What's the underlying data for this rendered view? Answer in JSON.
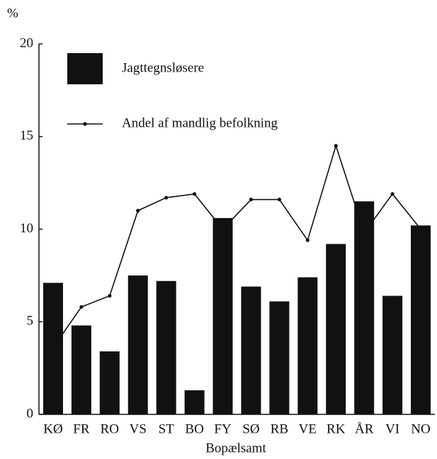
{
  "chart_data": {
    "type": "bar_line",
    "ylabel": "%",
    "xlabel": "Bopælsamt",
    "categories": [
      "KØ",
      "FR",
      "RO",
      "VS",
      "ST",
      "BO",
      "FY",
      "SØ",
      "RB",
      "VE",
      "RK",
      "ÅR",
      "VI",
      "NO"
    ],
    "series": [
      {
        "name": "Jagttegnsløsere",
        "type": "bar",
        "color": "#111111",
        "values": [
          7.1,
          4.8,
          3.4,
          7.5,
          7.2,
          1.3,
          10.6,
          6.9,
          6.1,
          7.4,
          9.2,
          11.5,
          6.4,
          10.2
        ]
      },
      {
        "name": "Andel af mandlig befolkning",
        "type": "line",
        "color": "#111111",
        "values": [
          3.6,
          5.8,
          6.4,
          11.0,
          11.7,
          11.9,
          10.0,
          11.6,
          11.6,
          9.4,
          14.5,
          9.8,
          11.9,
          10.0
        ]
      }
    ],
    "ylim": [
      0,
      20
    ],
    "yticks": [
      0,
      5,
      10,
      15,
      20
    ],
    "grid": false,
    "legend": "upper left"
  }
}
